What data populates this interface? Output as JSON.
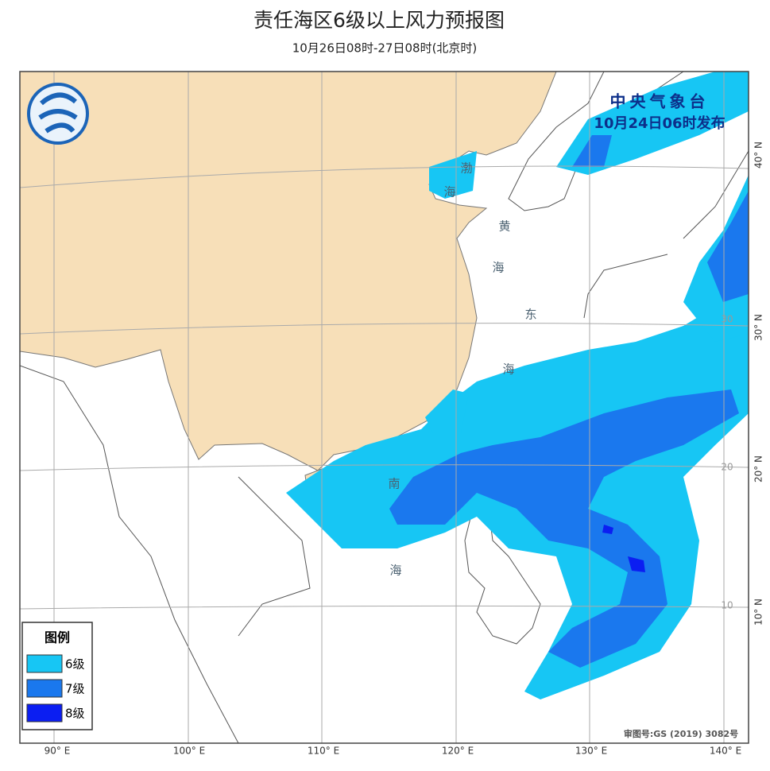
{
  "header": {
    "title": "责任海区6级以上风力预报图",
    "subtitle": "10月26日08时-27日08时(北京时)"
  },
  "issuer": {
    "name": "中央气象台",
    "time": "10月24日06时发布"
  },
  "sea_labels": [
    "渤",
    "海",
    "黄",
    "海",
    "东",
    "海",
    "南",
    "海"
  ],
  "legend": {
    "title": "图例",
    "items": [
      {
        "label": "6级",
        "color": "#17c6f4"
      },
      {
        "label": "7级",
        "color": "#1a78ee"
      },
      {
        "label": "8级",
        "color": "#0b1ef2"
      }
    ]
  },
  "lon_labels": [
    "90° E",
    "100° E",
    "110° E",
    "120° E",
    "130° E",
    "140° E"
  ],
  "lat_labels": [
    "40° N",
    "30° N",
    "20° N",
    "10° N"
  ],
  "grid_labels": [
    "30",
    "20",
    "10"
  ],
  "approval": "审图号:GS (2019) 3082号"
}
